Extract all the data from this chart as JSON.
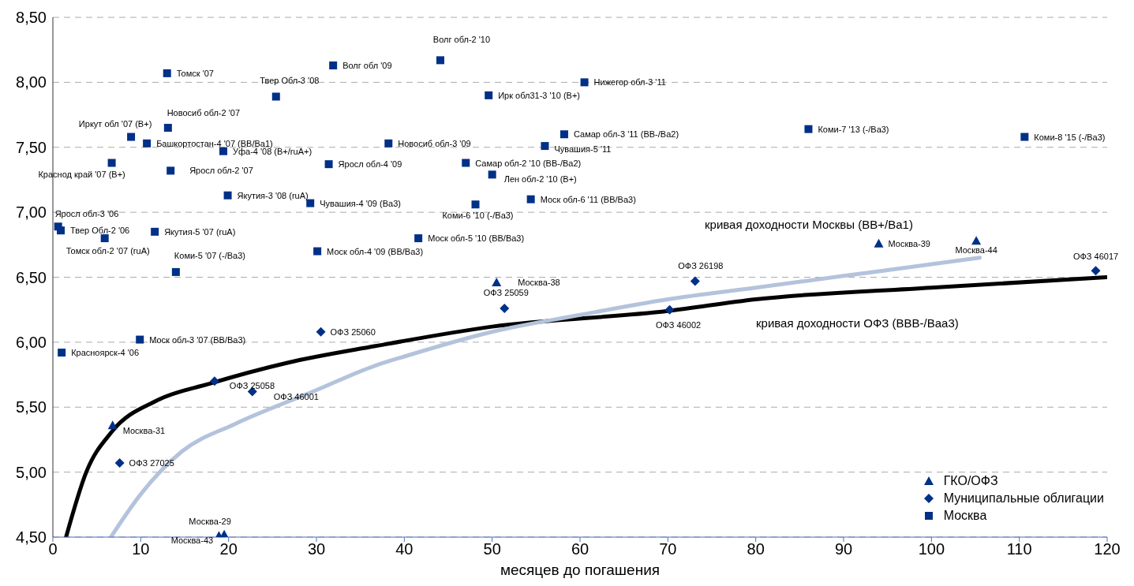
{
  "chart_data": {
    "type": "scatter",
    "xlabel": "месяцев до погашения",
    "xlim": [
      0,
      120
    ],
    "xticks": [
      0,
      10,
      20,
      30,
      40,
      50,
      60,
      70,
      80,
      90,
      100,
      110,
      120
    ],
    "ylim": [
      4.5,
      8.5
    ],
    "yticks": [
      {
        "value": 4.5,
        "label": "4,50"
      },
      {
        "value": 5,
        "label": "5,00"
      },
      {
        "value": 5.5,
        "label": "5,50"
      },
      {
        "value": 6,
        "label": "6,00"
      },
      {
        "value": 6.5,
        "label": "6,50"
      },
      {
        "value": 7,
        "label": "7,00"
      },
      {
        "value": 7.5,
        "label": "7,50"
      },
      {
        "value": 8,
        "label": "8,00"
      },
      {
        "value": 8.5,
        "label": "8,50"
      }
    ],
    "grid": "y",
    "legend": "bottom right",
    "series": [
      {
        "name": "ГКО/ОФЗ",
        "marker": "triangle",
        "color": "#003087",
        "x": [
          6.8,
          19.5,
          18.9,
          50.5,
          94.0,
          105.1
        ],
        "values": [
          5.36,
          4.52,
          4.51,
          6.46,
          6.76,
          6.78
        ]
      },
      {
        "name": "Муниципальные облигации",
        "marker": "diamond",
        "color": "#003087",
        "x": [
          7.6,
          18.4,
          22.7,
          30.5,
          51.4,
          70.2,
          73.1,
          118.7
        ],
        "values": [
          5.07,
          5.7,
          5.62,
          6.08,
          6.26,
          6.25,
          6.47,
          6.55
        ]
      },
      {
        "name": "Москва",
        "marker": "square",
        "color": "#003087",
        "x": [
          0.6,
          0.9,
          5.9,
          11.6,
          14.0,
          6.7,
          8.9,
          10.7,
          13.1,
          13.4,
          13.0,
          19.4,
          19.9,
          25.4,
          29.3,
          31.9,
          31.4,
          30.1,
          38.2,
          41.6,
          44.1,
          49.6,
          47.0,
          50.0,
          48.1,
          54.4,
          56.0,
          58.2,
          60.5,
          86.0,
          110.6,
          9.9,
          1.0
        ],
        "values": [
          6.89,
          6.86,
          6.8,
          6.85,
          6.54,
          7.38,
          7.58,
          7.53,
          7.65,
          7.32,
          8.07,
          7.47,
          7.13,
          7.89,
          7.07,
          8.13,
          7.37,
          6.7,
          7.53,
          6.8,
          8.17,
          7.9,
          7.38,
          7.29,
          7.06,
          7.1,
          7.51,
          7.6,
          8.0,
          7.64,
          7.58,
          6.02,
          5.92
        ]
      },
      {
        "type": "line",
        "color": "#000000",
        "x": [
          1.5,
          3.8,
          6.7,
          11.8,
          17.8,
          26.6,
          36.7,
          50,
          70,
          80,
          100,
          120
        ],
        "values": [
          4.5,
          5.0,
          5.31,
          5.55,
          5.68,
          5.84,
          5.97,
          6.12,
          6.24,
          6.33,
          6.42,
          6.5
        ]
      },
      {
        "type": "line",
        "color": "#b4c3dc",
        "x": [
          6.6,
          10.0,
          14.7,
          20.7,
          29.6,
          36.7,
          40,
          50,
          60,
          70,
          80,
          90,
          100,
          105.5
        ],
        "values": [
          4.5,
          4.83,
          5.16,
          5.37,
          5.62,
          5.82,
          5.89,
          6.08,
          6.21,
          6.33,
          6.42,
          6.51,
          6.6,
          6.65
        ]
      }
    ],
    "annotations": [
      {
        "text": "Яросл обл-3 '06",
        "x": 0.6,
        "y": 6.89
      },
      {
        "text": "Твер Обл-2 '06",
        "x": 0.9,
        "y": 6.86
      },
      {
        "text": "Томск обл-2 '07 (ruA)",
        "x": 5.9,
        "y": 6.8
      },
      {
        "text": "Якутия-5 '07 (ruA)",
        "x": 11.6,
        "y": 6.85
      },
      {
        "text": "Коми-5 '07 (-/Ba3)",
        "x": 14.0,
        "y": 6.54
      },
      {
        "text": "Краснод край '07 (B+)",
        "x": 6.7,
        "y": 7.38
      },
      {
        "text": "Иркут обл '07 (B+)",
        "x": 8.9,
        "y": 7.58
      },
      {
        "text": "Башкортостан-4 '07 (BB/Ba1)",
        "x": 10.7,
        "y": 7.53
      },
      {
        "text": "Новосиб обл-2 '07",
        "x": 13.1,
        "y": 7.65
      },
      {
        "text": "Яросл обл-2 '07",
        "x": 13.4,
        "y": 7.32
      },
      {
        "text": "Томск '07",
        "x": 13.0,
        "y": 8.07
      },
      {
        "text": "Уфа-4 '08 (B+/ruA+)",
        "x": 19.4,
        "y": 7.47
      },
      {
        "text": "Якутия-3 '08 (ruA)",
        "x": 19.9,
        "y": 7.13
      },
      {
        "text": "Твер Обл-3 '08",
        "x": 25.4,
        "y": 7.89
      },
      {
        "text": "Чувашия-4 '09 (Ba3)",
        "x": 29.3,
        "y": 7.07
      },
      {
        "text": "Волг обл '09",
        "x": 31.9,
        "y": 8.13
      },
      {
        "text": "Яросл обл-4 '09",
        "x": 31.4,
        "y": 7.37
      },
      {
        "text": "Моск обл-4 '09 (BB/Ba3)",
        "x": 30.1,
        "y": 6.7
      },
      {
        "text": "Новосиб обл-3 '09",
        "x": 38.2,
        "y": 7.53
      },
      {
        "text": "Моск обл-5 '10 (BB/Ba3)",
        "x": 41.6,
        "y": 6.8
      },
      {
        "text": "Волг обл-2 '10",
        "x": 44.1,
        "y": 8.17
      },
      {
        "text": "Ирк обл31-3 '10 (B+)",
        "x": 49.6,
        "y": 7.9
      },
      {
        "text": "Самар обл-2 '10 (BB-/Ba2)",
        "x": 47.0,
        "y": 7.38
      },
      {
        "text": "Лен обл-2 '10 (B+)",
        "x": 50.0,
        "y": 7.29
      },
      {
        "text": "Коми-6 '10 (-/Ba3)",
        "x": 48.1,
        "y": 7.06
      },
      {
        "text": "Моск обл-6 '11 (BB/Ba3)",
        "x": 54.4,
        "y": 7.1
      },
      {
        "text": "Чувашия-5 '11",
        "x": 56.0,
        "y": 7.51
      },
      {
        "text": "Самар обл-3 '11 (BB-/Ba2)",
        "x": 58.2,
        "y": 7.6
      },
      {
        "text": "Нижегор обл-3 '11",
        "x": 60.5,
        "y": 8.0
      },
      {
        "text": "Коми-7 '13 (-/Ba3)",
        "x": 86.0,
        "y": 7.64
      },
      {
        "text": "Коми-8 '15 (-/Ba3)",
        "x": 110.6,
        "y": 7.58
      },
      {
        "text": "Моск обл-3 '07 (BB/Ba3)",
        "x": 9.9,
        "y": 6.02
      },
      {
        "text": "Красноярск-4 '06",
        "x": 1.0,
        "y": 5.92
      },
      {
        "text": "ОФЗ 27025",
        "x": 7.6,
        "y": 5.07
      },
      {
        "text": "ОФЗ 25058",
        "x": 18.4,
        "y": 5.7
      },
      {
        "text": "ОФЗ 46001",
        "x": 22.7,
        "y": 5.62
      },
      {
        "text": "ОФЗ 25060",
        "x": 30.5,
        "y": 6.08
      },
      {
        "text": "ОФЗ 25059",
        "x": 51.4,
        "y": 6.26
      },
      {
        "text": "ОФЗ 46002",
        "x": 70.2,
        "y": 6.25
      },
      {
        "text": "ОФЗ 26198",
        "x": 73.1,
        "y": 6.47
      },
      {
        "text": "ОФЗ 46017",
        "x": 118.7,
        "y": 6.55
      },
      {
        "text": "Москва-31",
        "x": 6.8,
        "y": 5.36
      },
      {
        "text": "Москва-29",
        "x": 19.5,
        "y": 4.52
      },
      {
        "text": "Москва-43",
        "x": 18.9,
        "y": 4.51
      },
      {
        "text": "Москва-38",
        "x": 50.5,
        "y": 6.46
      },
      {
        "text": "Москва-39",
        "x": 94.0,
        "y": 6.76
      },
      {
        "text": "Москва-44",
        "x": 105.1,
        "y": 6.78
      },
      "кривая доходности Москвы (BB+/Ba1)",
      "кривая доходности ОФЗ (BBB-/Baa3)"
    ]
  }
}
